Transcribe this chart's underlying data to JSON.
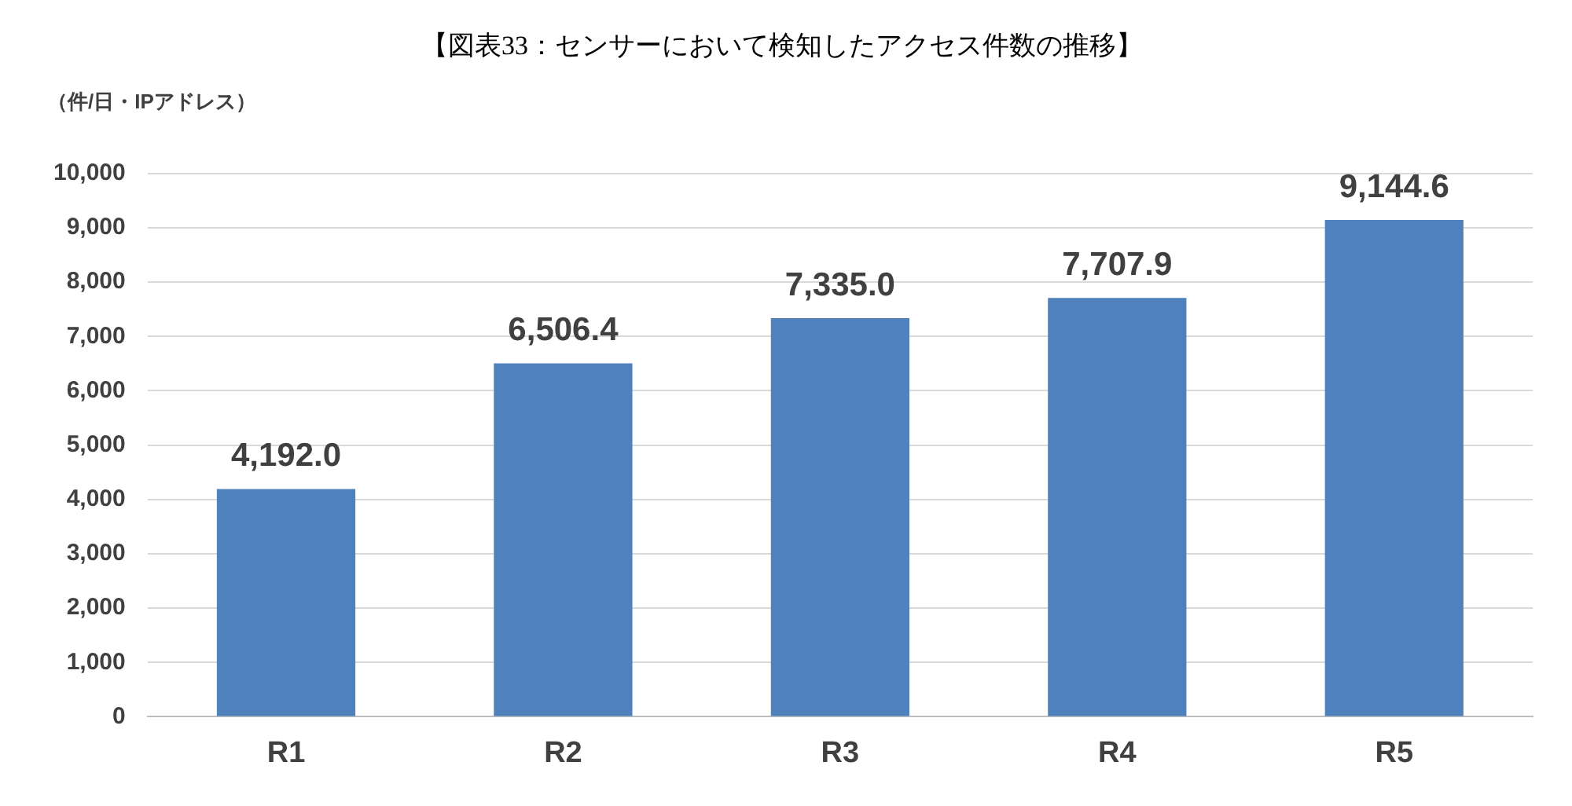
{
  "chart_data": {
    "type": "bar",
    "title": "【図表33：センサーにおいて検知したアクセス件数の推移】",
    "ylabel": "（件/日・IPアドレス）",
    "categories": [
      "R1",
      "R2",
      "R3",
      "R4",
      "R5"
    ],
    "values": [
      4192.0,
      6506.4,
      7335.0,
      7707.9,
      9144.6
    ],
    "value_labels": [
      "4,192.0",
      "6,506.4",
      "7,335.0",
      "7,707.9",
      "9,144.6"
    ],
    "color": "#4f81bd",
    "ylim": [
      0,
      10000
    ],
    "yticks": [
      {
        "value": 0,
        "label": "0"
      },
      {
        "value": 1000,
        "label": "1,000"
      },
      {
        "value": 2000,
        "label": "2,000"
      },
      {
        "value": 3000,
        "label": "3,000"
      },
      {
        "value": 4000,
        "label": "4,000"
      },
      {
        "value": 5000,
        "label": "5,000"
      },
      {
        "value": 6000,
        "label": "6,000"
      },
      {
        "value": 7000,
        "label": "7,000"
      },
      {
        "value": 8000,
        "label": "8,000"
      },
      {
        "value": 9000,
        "label": "9,000"
      },
      {
        "value": 10000,
        "label": "10,000"
      }
    ],
    "grid": "y",
    "legend": false
  }
}
